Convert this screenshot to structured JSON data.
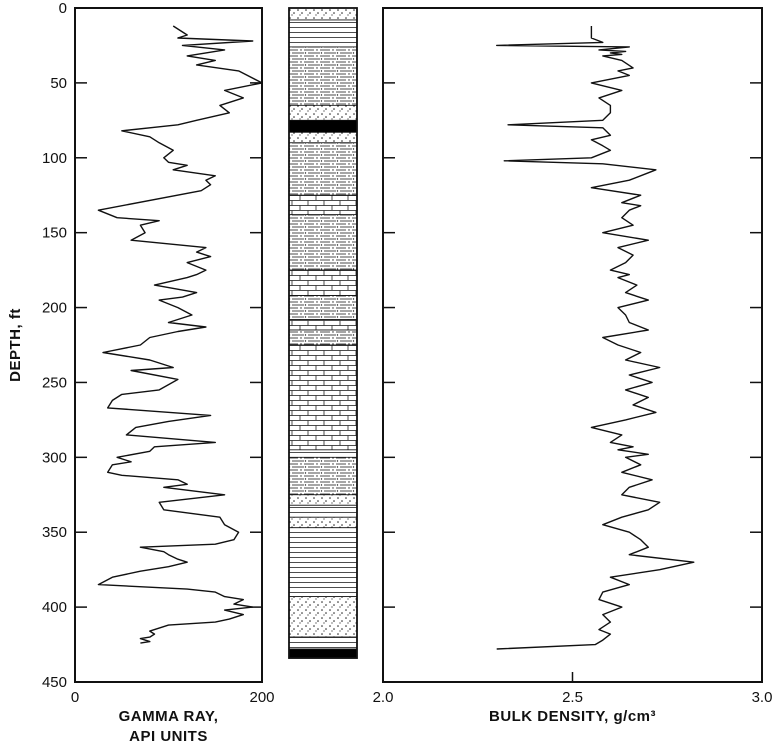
{
  "chart_data": [
    {
      "type": "line",
      "panel": "gamma-ray",
      "xlabel_lines": [
        "GAMMA RAY,",
        "API UNITS"
      ],
      "ylabel": "DEPTH, ft",
      "xlim": [
        0,
        200
      ],
      "ylim": [
        450,
        0
      ],
      "x_ticks": [
        "0",
        "200"
      ],
      "y_ticks": [
        "0",
        "50",
        "100",
        "150",
        "200",
        "250",
        "300",
        "350",
        "400",
        "450"
      ],
      "series": [
        {
          "x_values": [
            105,
            120,
            110,
            190,
            115,
            160,
            120,
            150,
            130,
            175,
            200,
            160,
            180,
            155,
            165,
            130,
            110,
            50,
            80,
            90,
            105,
            95,
            100,
            120,
            105,
            150,
            140,
            145,
            135,
            25,
            45,
            90,
            70,
            75,
            60,
            140,
            130,
            145,
            120,
            140,
            130,
            120,
            85,
            130,
            115,
            90,
            110,
            125,
            100,
            140,
            110,
            80,
            70,
            30,
            80,
            105,
            60,
            110,
            90,
            50,
            40,
            35,
            145,
            100,
            65,
            55,
            150,
            85,
            80,
            45,
            60,
            40,
            35,
            50,
            110,
            120,
            95,
            160,
            90,
            95,
            155,
            160,
            175,
            170,
            150,
            70,
            95,
            100,
            110,
            120,
            100,
            70,
            40,
            25,
            120,
            150,
            160,
            180,
            170,
            190,
            160,
            180,
            165,
            150,
            100,
            90,
            80,
            85,
            80,
            70,
            75,
            80,
            70
          ],
          "y_values": [
            12,
            18,
            20,
            22,
            25,
            28,
            32,
            35,
            38,
            42,
            50,
            55,
            60,
            65,
            70,
            75,
            78,
            82,
            86,
            90,
            95,
            100,
            103,
            105,
            108,
            112,
            115,
            118,
            122,
            135,
            140,
            142,
            145,
            150,
            155,
            160,
            163,
            166,
            170,
            175,
            178,
            180,
            185,
            190,
            193,
            195,
            200,
            205,
            210,
            213,
            216,
            220,
            225,
            230,
            235,
            240,
            242,
            248,
            255,
            258,
            262,
            267,
            272,
            276,
            280,
            285,
            290,
            293,
            296,
            300,
            303,
            305,
            310,
            312,
            315,
            318,
            320,
            325,
            330,
            335,
            340,
            345,
            350,
            355,
            358,
            360,
            363,
            365,
            368,
            370,
            373,
            376,
            380,
            385,
            388,
            390,
            393,
            395,
            398,
            400,
            402,
            405,
            408,
            410,
            412,
            414,
            416,
            418,
            420,
            421,
            422,
            423,
            424
          ]
        }
      ]
    },
    {
      "type": "line",
      "panel": "bulk-density",
      "xlabel": "BULK DENSITY, g/cm³",
      "xlim": [
        2.0,
        3.0
      ],
      "ylim": [
        450,
        0
      ],
      "x_ticks": [
        "2.0",
        "2.5",
        "3.0"
      ],
      "series": [
        {
          "x_values": [
            2.55,
            2.55,
            2.58,
            2.3,
            2.65,
            2.57,
            2.64,
            2.6,
            2.63,
            2.58,
            2.63,
            2.66,
            2.62,
            2.65,
            2.55,
            2.63,
            2.57,
            2.6,
            2.6,
            2.58,
            2.33,
            2.58,
            2.6,
            2.55,
            2.58,
            2.6,
            2.55,
            2.32,
            2.58,
            2.72,
            2.7,
            2.65,
            2.55,
            2.68,
            2.63,
            2.68,
            2.65,
            2.63,
            2.66,
            2.58,
            2.7,
            2.62,
            2.66,
            2.64,
            2.6,
            2.65,
            2.62,
            2.67,
            2.64,
            2.7,
            2.62,
            2.64,
            2.65,
            2.7,
            2.58,
            2.62,
            2.68,
            2.64,
            2.73,
            2.65,
            2.71,
            2.64,
            2.7,
            2.66,
            2.72,
            2.64,
            2.55,
            2.63,
            2.6,
            2.66,
            2.62,
            2.7,
            2.64,
            2.68,
            2.63,
            2.71,
            2.65,
            2.63,
            2.73,
            2.7,
            2.63,
            2.58,
            2.65,
            2.68,
            2.7,
            2.65,
            2.82,
            2.73,
            2.6,
            2.65,
            2.58,
            2.57,
            2.63,
            2.58,
            2.6,
            2.57,
            2.6,
            2.58,
            2.56,
            2.3
          ],
          "y_values": [
            12,
            20,
            23,
            25,
            26,
            28,
            29,
            30,
            31,
            32,
            35,
            40,
            42,
            45,
            50,
            55,
            60,
            65,
            70,
            75,
            78,
            80,
            85,
            88,
            92,
            95,
            100,
            102,
            104,
            108,
            110,
            115,
            120,
            125,
            130,
            132,
            135,
            140,
            145,
            150,
            155,
            160,
            165,
            170,
            175,
            178,
            180,
            185,
            190,
            195,
            200,
            205,
            210,
            215,
            220,
            225,
            230,
            235,
            240,
            245,
            250,
            255,
            260,
            265,
            270,
            275,
            280,
            285,
            290,
            293,
            295,
            298,
            300,
            305,
            310,
            315,
            320,
            325,
            330,
            335,
            340,
            345,
            350,
            355,
            360,
            365,
            370,
            375,
            380,
            385,
            390,
            395,
            400,
            405,
            410,
            415,
            418,
            422,
            425,
            428
          ]
        }
      ]
    },
    {
      "type": "table",
      "panel": "lithology-column",
      "units": [
        {
          "lithology": "sandstone",
          "top": 0,
          "bottom": 8
        },
        {
          "lithology": "shale",
          "top": 8,
          "bottom": 26
        },
        {
          "lithology": "siltstone",
          "top": 26,
          "bottom": 65
        },
        {
          "lithology": "sandstone",
          "top": 65,
          "bottom": 75
        },
        {
          "lithology": "coal",
          "top": 75,
          "bottom": 83
        },
        {
          "lithology": "sandstone",
          "top": 83,
          "bottom": 90
        },
        {
          "lithology": "siltstone",
          "top": 90,
          "bottom": 125
        },
        {
          "lithology": "limestone",
          "top": 125,
          "bottom": 138
        },
        {
          "lithology": "siltstone",
          "top": 138,
          "bottom": 175
        },
        {
          "lithology": "limestone",
          "top": 175,
          "bottom": 192
        },
        {
          "lithology": "siltstone",
          "top": 192,
          "bottom": 208
        },
        {
          "lithology": "limestone",
          "top": 208,
          "bottom": 215
        },
        {
          "lithology": "siltstone",
          "top": 215,
          "bottom": 225
        },
        {
          "lithology": "limestone",
          "top": 225,
          "bottom": 295
        },
        {
          "lithology": "shale",
          "top": 295,
          "bottom": 300
        },
        {
          "lithology": "siltstone",
          "top": 300,
          "bottom": 325
        },
        {
          "lithology": "sandstone",
          "top": 325,
          "bottom": 332
        },
        {
          "lithology": "shale",
          "top": 332,
          "bottom": 340
        },
        {
          "lithology": "sandstone",
          "top": 340,
          "bottom": 347
        },
        {
          "lithology": "shale",
          "top": 347,
          "bottom": 393
        },
        {
          "lithology": "sandstone",
          "top": 393,
          "bottom": 420
        },
        {
          "lithology": "shale",
          "top": 420,
          "bottom": 428
        },
        {
          "lithology": "coal",
          "top": 428,
          "bottom": 434
        }
      ]
    }
  ],
  "colors": {
    "ink": "#111111",
    "background": "#ffffff",
    "coal": "#000000"
  }
}
